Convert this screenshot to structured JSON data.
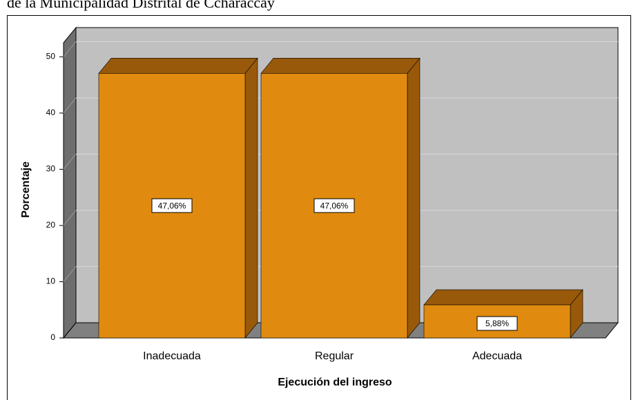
{
  "chart_data": {
    "type": "bar3d",
    "title": "de la Municipalidad Distrital de Ccharaccay",
    "x_label": "Ejecución del ingreso",
    "y_label": "Porcentaje",
    "categories": [
      "Inadecuada",
      "Regular",
      "Adecuada"
    ],
    "values": [
      47.06,
      47.06,
      5.88
    ],
    "value_labels": [
      "47,06%",
      "47,06%",
      "5,88%"
    ],
    "color": "#e08b0f",
    "ylim": [
      0,
      52.5
    ],
    "yticks": [
      0,
      10,
      20,
      30,
      40,
      50
    ],
    "grid": true
  }
}
